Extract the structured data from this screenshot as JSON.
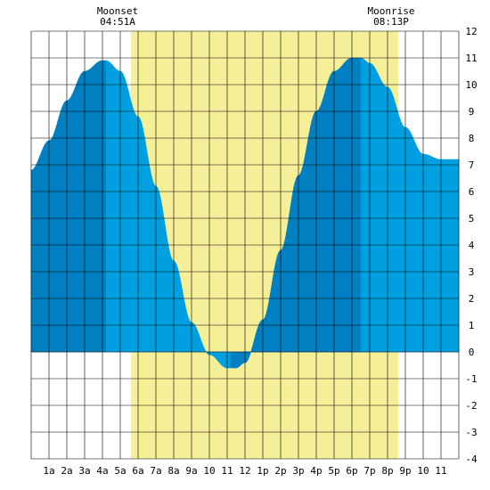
{
  "chart_data": {
    "type": "area",
    "title": "",
    "xlabel": "",
    "ylabel": "",
    "x_range": [
      0,
      24
    ],
    "ylim": [
      -4,
      12
    ],
    "grid": true,
    "x_ticks": [
      {
        "x": 1,
        "label": "1a"
      },
      {
        "x": 2,
        "label": "2a"
      },
      {
        "x": 3,
        "label": "3a"
      },
      {
        "x": 4,
        "label": "4a"
      },
      {
        "x": 5,
        "label": "5a"
      },
      {
        "x": 6,
        "label": "6a"
      },
      {
        "x": 7,
        "label": "7a"
      },
      {
        "x": 8,
        "label": "8a"
      },
      {
        "x": 9,
        "label": "9a"
      },
      {
        "x": 10,
        "label": "10"
      },
      {
        "x": 11,
        "label": "11"
      },
      {
        "x": 12,
        "label": "12"
      },
      {
        "x": 13,
        "label": "1p"
      },
      {
        "x": 14,
        "label": "2p"
      },
      {
        "x": 15,
        "label": "3p"
      },
      {
        "x": 16,
        "label": "4p"
      },
      {
        "x": 17,
        "label": "5p"
      },
      {
        "x": 18,
        "label": "6p"
      },
      {
        "x": 19,
        "label": "7p"
      },
      {
        "x": 20,
        "label": "8p"
      },
      {
        "x": 21,
        "label": "9p"
      },
      {
        "x": 22,
        "label": "10"
      },
      {
        "x": 23,
        "label": "11"
      }
    ],
    "y_ticks": [
      -4,
      -3,
      -2,
      -1,
      0,
      1,
      2,
      3,
      4,
      5,
      6,
      7,
      8,
      9,
      10,
      11,
      12
    ],
    "tide_height": {
      "x": [
        0,
        1,
        2,
        3,
        4,
        4.2,
        5,
        6,
        7,
        8,
        9,
        10,
        11,
        11.5,
        12,
        13,
        14,
        15,
        16,
        17,
        18,
        18.5,
        19,
        20,
        21,
        22,
        23,
        24
      ],
      "y": [
        6.8,
        7.9,
        9.4,
        10.5,
        10.9,
        10.9,
        10.5,
        8.8,
        6.2,
        3.4,
        1.1,
        -0.1,
        -0.6,
        -0.6,
        -0.4,
        1.2,
        3.8,
        6.6,
        9.0,
        10.5,
        11.0,
        11.0,
        10.8,
        9.9,
        8.4,
        7.4,
        7.2,
        7.2
      ]
    },
    "bands": [
      {
        "from": 0,
        "to": 4.2,
        "shade": "dark"
      },
      {
        "from": 4.2,
        "to": 11.2,
        "shade": "light"
      },
      {
        "from": 11.2,
        "to": 12.1,
        "shade": "dark"
      },
      {
        "from": 12.1,
        "to": 18.5,
        "shade": "dark"
      },
      {
        "from": 18.5,
        "to": 24,
        "shade": "light"
      }
    ],
    "moon_window": {
      "from": 5.6,
      "to": 20.6
    },
    "annotations": [
      {
        "event": "Moonset",
        "time": "04:51A",
        "x": 4.85
      },
      {
        "event": "Moonrise",
        "time": "08:13P",
        "x": 20.2
      }
    ],
    "colors": {
      "dark_water": "#0080c0",
      "light_water": "#00a0e0",
      "moon_window": "#f5ef98",
      "grid": "#000000",
      "background": "#ffffff"
    }
  }
}
